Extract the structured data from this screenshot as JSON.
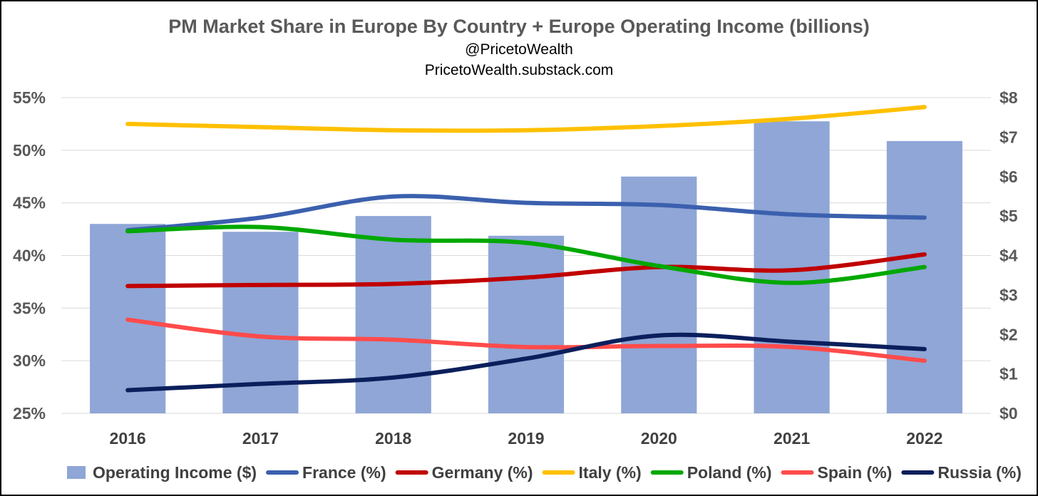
{
  "chart_data": {
    "type": "bar+line",
    "title": "PM Market Share in Europe By Country + Europe Operating Income (billions)",
    "subtitles": [
      "@PricetoWealth",
      "PricetoWealth.substack.com"
    ],
    "categories": [
      "2016",
      "2017",
      "2018",
      "2019",
      "2020",
      "2021",
      "2022"
    ],
    "y_left": {
      "ylim": [
        25,
        55
      ],
      "ticks": [
        25,
        30,
        35,
        40,
        45,
        50,
        55
      ],
      "tick_labels": [
        "25%",
        "30%",
        "35%",
        "40%",
        "45%",
        "50%",
        "55%"
      ]
    },
    "y_right": {
      "ylim": [
        0,
        8
      ],
      "ticks": [
        0,
        1,
        2,
        3,
        4,
        5,
        6,
        7,
        8
      ],
      "tick_labels": [
        "$0",
        "$1",
        "$2",
        "$3",
        "$4",
        "$5",
        "$6",
        "$7",
        "$8"
      ]
    },
    "bars": {
      "name": "Operating Income ($)",
      "axis": "right",
      "color": "#8FA6D6",
      "values": [
        4.8,
        4.6,
        5.0,
        4.5,
        6.0,
        7.4,
        6.9
      ]
    },
    "series": [
      {
        "name": "France (%)",
        "color": "#3B60AE",
        "values": [
          42.4,
          43.6,
          45.6,
          45.0,
          44.8,
          43.9,
          43.6
        ]
      },
      {
        "name": "Germany (%)",
        "color": "#C00000",
        "values": [
          37.1,
          37.2,
          37.3,
          37.9,
          38.9,
          38.6,
          40.1
        ]
      },
      {
        "name": "Italy (%)",
        "color": "#FFC000",
        "values": [
          52.5,
          52.2,
          51.9,
          51.9,
          52.3,
          53.0,
          54.1
        ]
      },
      {
        "name": "Poland (%)",
        "color": "#00A800",
        "values": [
          42.3,
          42.7,
          41.5,
          41.2,
          39.0,
          37.4,
          38.9
        ]
      },
      {
        "name": "Spain (%)",
        "color": "#FF4B4B",
        "values": [
          33.9,
          32.3,
          32.0,
          31.3,
          31.4,
          31.3,
          30.0
        ]
      },
      {
        "name": "Russia (%)",
        "color": "#0B1F5C",
        "values": [
          27.2,
          27.8,
          28.4,
          30.2,
          32.4,
          31.8,
          31.1
        ]
      }
    ],
    "grid": true,
    "legend_position": "bottom"
  }
}
